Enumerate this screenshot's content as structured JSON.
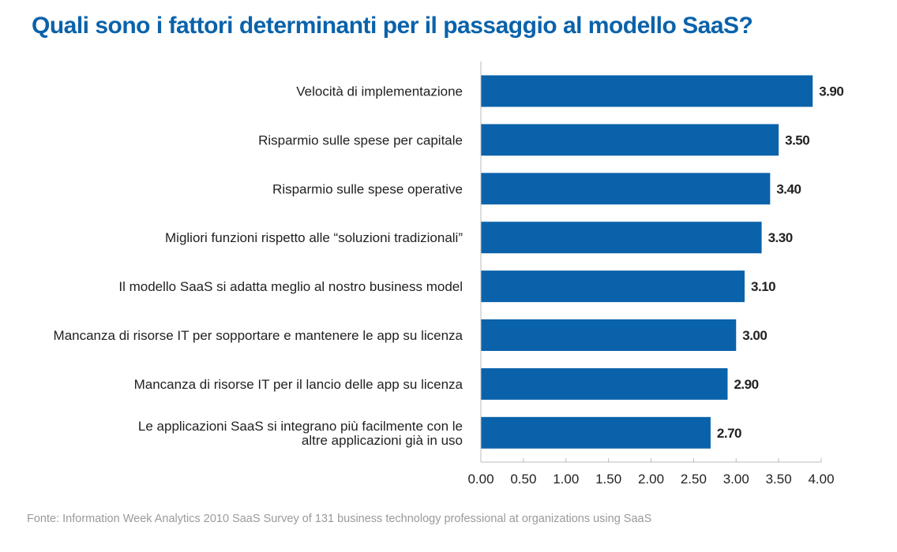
{
  "chart_data": {
    "type": "bar",
    "orientation": "horizontal",
    "title": "Quali sono i fattori determinanti per il passaggio al modello SaaS?",
    "categories": [
      [
        "Velocità di implementazione"
      ],
      [
        "Risparmio sulle spese per capitale"
      ],
      [
        "Risparmio sulle spese operative"
      ],
      [
        "Migliori funzioni rispetto alle “soluzioni tradizionali”"
      ],
      [
        "Il modello SaaS si adatta meglio al nostro business model"
      ],
      [
        "Mancanza di risorse IT per sopportare e mantenere le app su licenza"
      ],
      [
        "Mancanza di risorse IT per il lancio delle app su licenza"
      ],
      [
        "Le applicazioni SaaS si integrano più facilmente con le",
        "altre applicazioni già in uso"
      ]
    ],
    "values": [
      3.9,
      3.5,
      3.4,
      3.3,
      3.1,
      3.0,
      2.9,
      2.7
    ],
    "value_labels": [
      "3.90",
      "3.50",
      "3.40",
      "3.30",
      "3.10",
      "3.00",
      "2.90",
      "2.70"
    ],
    "xlim": [
      0,
      4
    ],
    "x_ticks": [
      "0.00",
      "0.50",
      "1.00",
      "1.50",
      "2.00",
      "2.50",
      "3.00",
      "3.50",
      "4.00"
    ],
    "xlabel": "",
    "ylabel": "",
    "grid": false,
    "legend": "none",
    "bar_color": "#0a62aa",
    "axis_color": "#bbbbbb"
  },
  "source": "Fonte: Information Week Analytics 2010 SaaS Survey of 131 business technology professional at organizations using SaaS"
}
